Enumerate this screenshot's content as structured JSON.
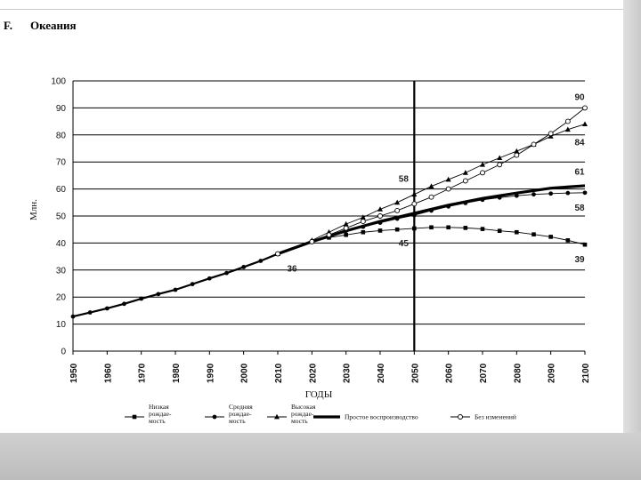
{
  "header": {
    "section": "F.",
    "title": "Океания"
  },
  "chart_data": {
    "type": "line",
    "title": "",
    "xlabel": "ГОДЫ",
    "ylabel": "Млн.",
    "xlim": [
      1950,
      2100
    ],
    "ylim": [
      0,
      100
    ],
    "yticks": [
      0,
      10,
      20,
      30,
      40,
      50,
      60,
      70,
      80,
      90,
      100
    ],
    "xticks": [
      1950,
      1960,
      1970,
      1980,
      1990,
      2000,
      2010,
      2020,
      2030,
      2040,
      2050,
      2060,
      2070,
      2080,
      2090,
      2100
    ],
    "grid": "horizontal",
    "vertical_marker": 2050,
    "legend_position": "bottom",
    "series": [
      {
        "name": "Низкая рождае-мость",
        "marker": "square",
        "points": [
          [
            2010,
            36
          ],
          [
            2020,
            40.5
          ],
          [
            2025,
            42
          ],
          [
            2030,
            43
          ],
          [
            2035,
            44
          ],
          [
            2040,
            44.6
          ],
          [
            2045,
            45
          ],
          [
            2050,
            45.4
          ],
          [
            2055,
            45.8
          ],
          [
            2060,
            45.8
          ],
          [
            2065,
            45.6
          ],
          [
            2070,
            45.2
          ],
          [
            2075,
            44.5
          ],
          [
            2080,
            44
          ],
          [
            2085,
            43.2
          ],
          [
            2090,
            42.3
          ],
          [
            2095,
            41
          ],
          [
            2100,
            39.4
          ]
        ]
      },
      {
        "name": "Средняя рождае-мость",
        "marker": "circle",
        "points": [
          [
            2010,
            36
          ],
          [
            2020,
            40.5
          ],
          [
            2025,
            42.8
          ],
          [
            2030,
            44.5
          ],
          [
            2035,
            46
          ],
          [
            2040,
            47.5
          ],
          [
            2045,
            49
          ],
          [
            2050,
            50.3
          ],
          [
            2055,
            52
          ],
          [
            2060,
            53.5
          ],
          [
            2065,
            54.8
          ],
          [
            2070,
            56
          ],
          [
            2075,
            56.8
          ],
          [
            2080,
            57.5
          ],
          [
            2085,
            58
          ],
          [
            2090,
            58.3
          ],
          [
            2095,
            58.5
          ],
          [
            2100,
            58.6
          ]
        ]
      },
      {
        "name": "Высокая рождае-мость",
        "marker": "triangle",
        "points": [
          [
            2010,
            36
          ],
          [
            2020,
            41
          ],
          [
            2025,
            44
          ],
          [
            2030,
            47
          ],
          [
            2035,
            49.5
          ],
          [
            2040,
            52.5
          ],
          [
            2045,
            55
          ],
          [
            2050,
            58
          ],
          [
            2055,
            61
          ],
          [
            2060,
            63.5
          ],
          [
            2065,
            66
          ],
          [
            2070,
            69
          ],
          [
            2075,
            71.5
          ],
          [
            2080,
            74
          ],
          [
            2085,
            76.5
          ],
          [
            2090,
            79.5
          ],
          [
            2095,
            82
          ],
          [
            2100,
            84
          ]
        ]
      },
      {
        "name": "Простое воспроизводство",
        "marker": "none",
        "thick": true,
        "points": [
          [
            2010,
            36
          ],
          [
            2020,
            40.5
          ],
          [
            2025,
            42.5
          ],
          [
            2030,
            44.5
          ],
          [
            2040,
            48
          ],
          [
            2050,
            51
          ],
          [
            2060,
            54
          ],
          [
            2070,
            56.5
          ],
          [
            2080,
            58.5
          ],
          [
            2090,
            60.3
          ],
          [
            2100,
            61.2
          ]
        ]
      },
      {
        "name": "Без изменений",
        "marker": "open-circle",
        "points": [
          [
            2010,
            36
          ],
          [
            2020,
            40.5
          ],
          [
            2025,
            43
          ],
          [
            2030,
            45.5
          ],
          [
            2035,
            48
          ],
          [
            2040,
            50
          ],
          [
            2045,
            52
          ],
          [
            2050,
            54.5
          ],
          [
            2055,
            57
          ],
          [
            2060,
            60
          ],
          [
            2065,
            63
          ],
          [
            2070,
            66
          ],
          [
            2075,
            69
          ],
          [
            2080,
            72.5
          ],
          [
            2085,
            76.5
          ],
          [
            2090,
            80.5
          ],
          [
            2095,
            85
          ],
          [
            2100,
            90
          ]
        ]
      }
    ],
    "history": {
      "marker": "circle",
      "points": [
        [
          1950,
          12.8
        ],
        [
          1955,
          14.3
        ],
        [
          1960,
          15.8
        ],
        [
          1965,
          17.5
        ],
        [
          1970,
          19.4
        ],
        [
          1975,
          21.1
        ],
        [
          1980,
          22.7
        ],
        [
          1985,
          24.8
        ],
        [
          1990,
          26.9
        ],
        [
          1995,
          28.9
        ],
        [
          2000,
          31.1
        ],
        [
          2005,
          33.4
        ],
        [
          2010,
          36
        ]
      ]
    },
    "annotations": [
      {
        "text": "90",
        "x": 2100,
        "y": 90
      },
      {
        "text": "84",
        "x": 2100,
        "y": 84
      },
      {
        "text": "61",
        "x": 2100,
        "y": 61
      },
      {
        "text": "58",
        "x": 2100,
        "y": 58.6
      },
      {
        "text": "39",
        "x": 2100,
        "y": 39.4
      },
      {
        "text": "58",
        "x": 2050,
        "y": 58
      },
      {
        "text": "45",
        "x": 2050,
        "y": 45.4
      },
      {
        "text": "36",
        "x": 2010,
        "y": 36
      }
    ]
  }
}
